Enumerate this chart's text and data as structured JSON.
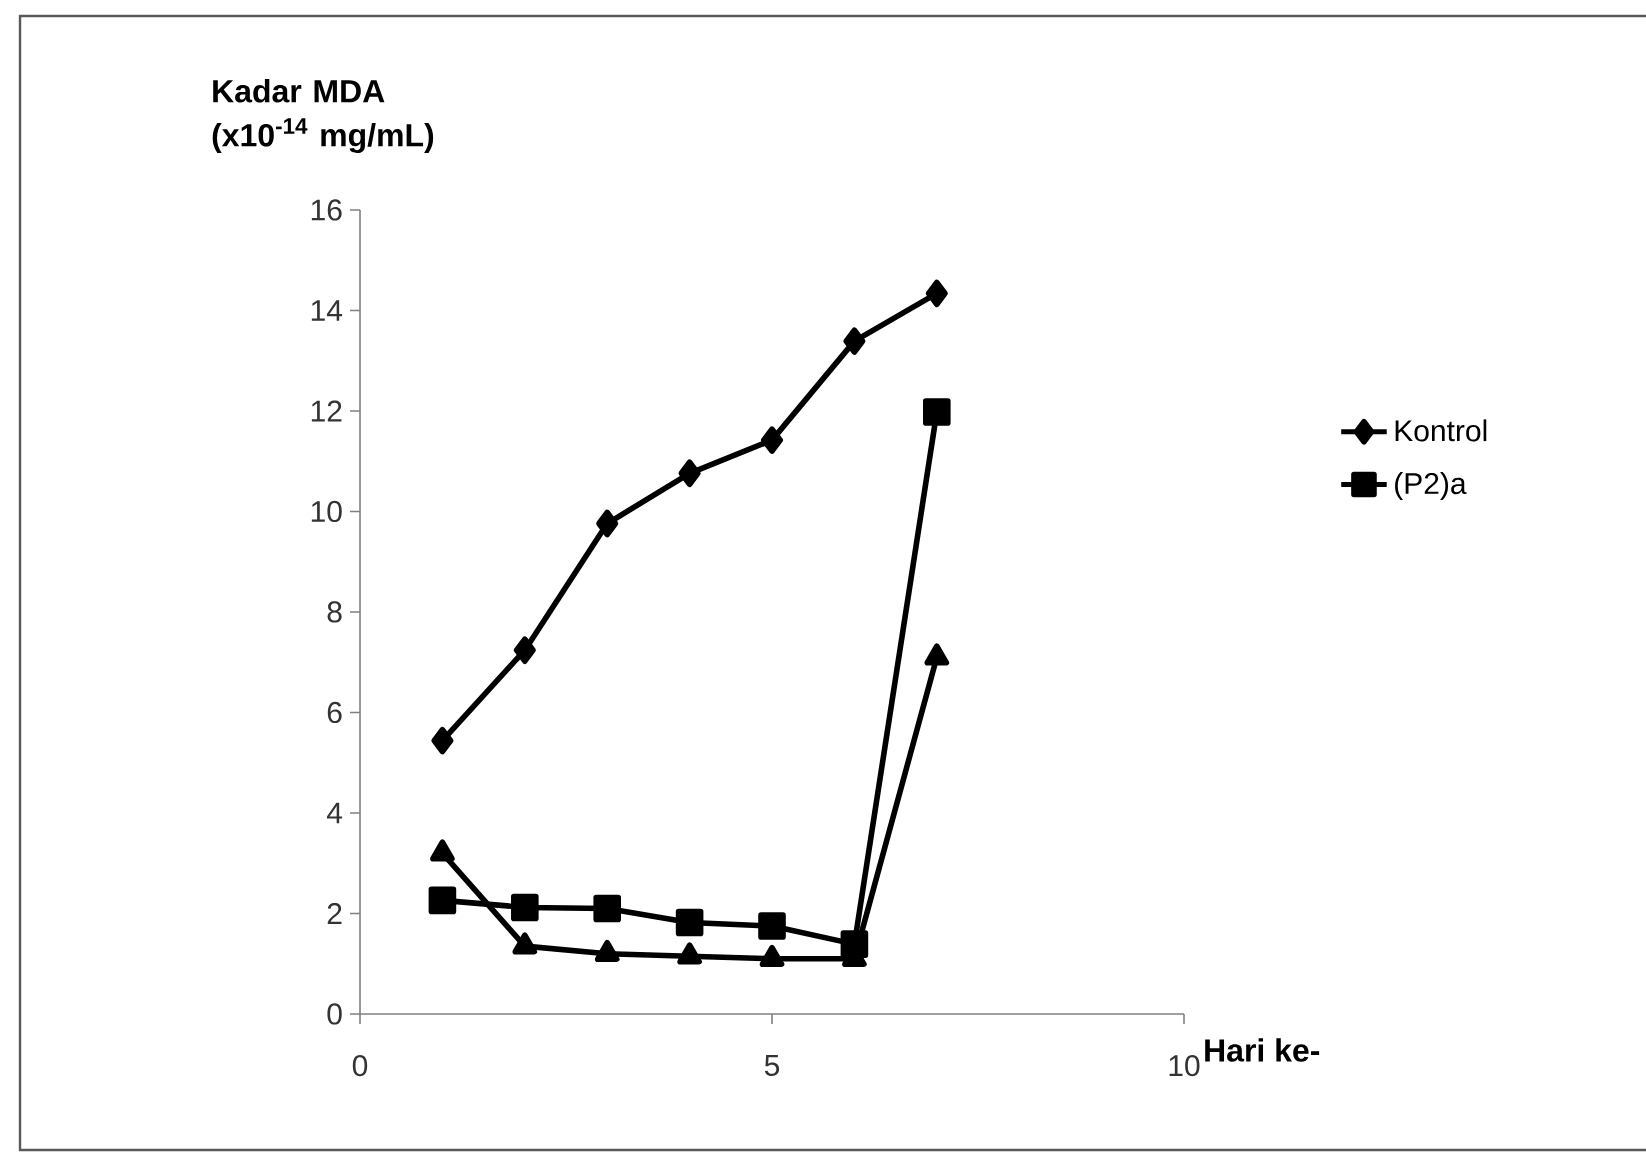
{
  "chart_data": {
    "type": "line",
    "ylabel": "Kadar MDA (x10$^{-14}$ mg/mL)",
    "xlabel": "Hari ke-",
    "x": [
      1,
      2,
      3,
      4,
      5,
      6,
      7
    ],
    "series": [
      {
        "name": "Kontrol",
        "color": "#000000",
        "marker": "diamond",
        "values": [
          5.44,
          7.24,
          9.76,
          10.76,
          11.42,
          13.39,
          14.34
        ]
      },
      {
        "name": "(P2)a",
        "color": "#000000",
        "marker": "square",
        "values": [
          2.26,
          2.12,
          2.1,
          1.82,
          1.75,
          1.39,
          11.98
        ]
      },
      {
        "color": "#000000",
        "marker": "triangle",
        "values": [
          3.2,
          1.35,
          1.2,
          1.15,
          1.1,
          1.1,
          7.1
        ]
      }
    ],
    "xlim": [
      0,
      10
    ],
    "xticks": [
      0,
      5,
      10
    ],
    "ylim": [
      0,
      16
    ],
    "yticks": [
      0,
      2,
      4,
      6,
      8,
      10,
      12,
      14,
      16
    ],
    "grid": false,
    "legend": "right",
    "line_style": "solid"
  }
}
